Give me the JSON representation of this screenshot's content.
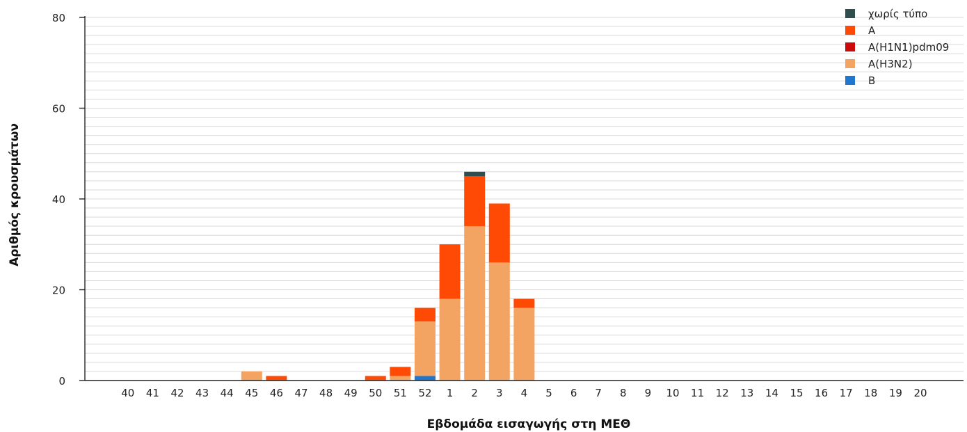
{
  "chart_data": {
    "type": "bar",
    "stacked": true,
    "xlabel": "Εβδομάδα εισαγωγής στη ΜΕΘ",
    "ylabel": "Αριθμός κρουσμάτων",
    "ylim": [
      0,
      80
    ],
    "yticks": [
      0,
      20,
      40,
      60,
      80
    ],
    "grid": true,
    "legend_position": "top-right",
    "categories": [
      "40",
      "41",
      "42",
      "43",
      "44",
      "45",
      "46",
      "47",
      "48",
      "49",
      "50",
      "51",
      "52",
      "1",
      "2",
      "3",
      "4",
      "5",
      "6",
      "7",
      "8",
      "9",
      "10",
      "11",
      "12",
      "13",
      "14",
      "15",
      "16",
      "17",
      "18",
      "19",
      "20"
    ],
    "series": [
      {
        "name": "B",
        "color": "#1f77d0",
        "values": [
          0,
          0,
          0,
          0,
          0,
          0,
          0,
          0,
          0,
          0,
          0,
          0,
          1,
          0,
          0,
          0,
          0,
          0,
          0,
          0,
          0,
          0,
          0,
          0,
          0,
          0,
          0,
          0,
          0,
          0,
          0,
          0,
          0
        ]
      },
      {
        "name": "A(H3N2)",
        "color": "#f4a462",
        "values": [
          0,
          0,
          0,
          0,
          0,
          2,
          0,
          0,
          0,
          0,
          0,
          1,
          12,
          18,
          34,
          26,
          16,
          0,
          0,
          0,
          0,
          0,
          0,
          0,
          0,
          0,
          0,
          0,
          0,
          0,
          0,
          0,
          0
        ]
      },
      {
        "name": "A(H1N1)pdm09",
        "color": "#cc0a0a",
        "values": [
          0,
          0,
          0,
          0,
          0,
          0,
          0,
          0,
          0,
          0,
          0,
          0,
          0,
          0,
          0,
          0,
          0,
          0,
          0,
          0,
          0,
          0,
          0,
          0,
          0,
          0,
          0,
          0,
          0,
          0,
          0,
          0,
          0
        ]
      },
      {
        "name": "A",
        "color": "#ff4a06",
        "values": [
          0,
          0,
          0,
          0,
          0,
          0,
          1,
          0,
          0,
          0,
          1,
          2,
          3,
          12,
          11,
          13,
          2,
          0,
          0,
          0,
          0,
          0,
          0,
          0,
          0,
          0,
          0,
          0,
          0,
          0,
          0,
          0,
          0
        ]
      },
      {
        "name": "χωρίς τύπο",
        "color": "#2f4f4f",
        "values": [
          0,
          0,
          0,
          0,
          0,
          0,
          0,
          0,
          0,
          0,
          0,
          0,
          0,
          0,
          1,
          0,
          0,
          0,
          0,
          0,
          0,
          0,
          0,
          0,
          0,
          0,
          0,
          0,
          0,
          0,
          0,
          0,
          0
        ]
      }
    ],
    "legend_order": [
      "χωρίς τύπο",
      "A",
      "A(H1N1)pdm09",
      "A(H3N2)",
      "B"
    ]
  }
}
